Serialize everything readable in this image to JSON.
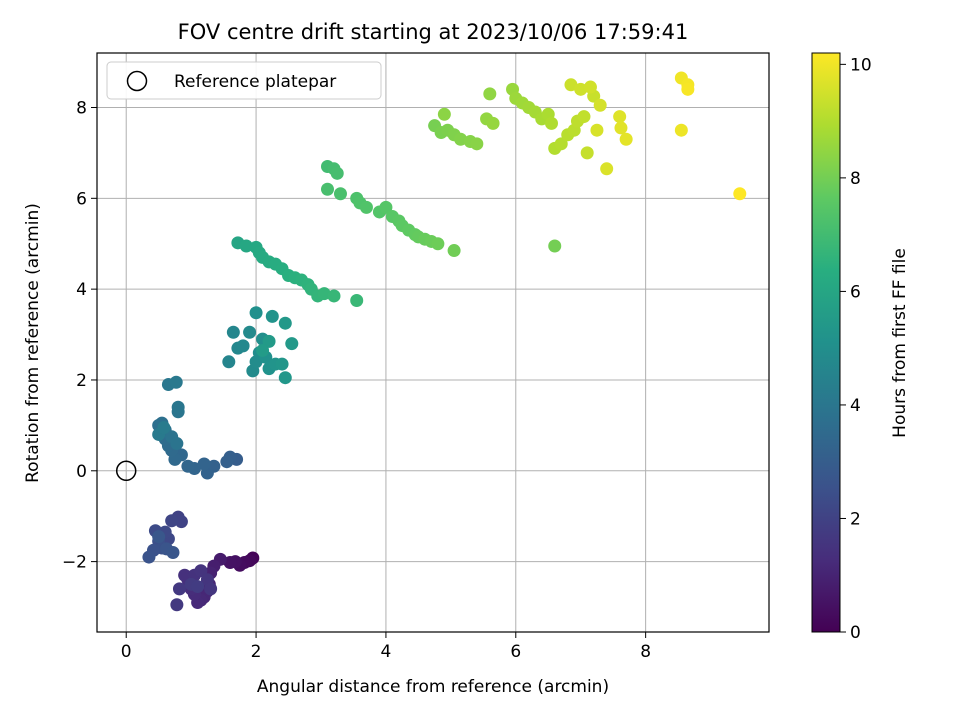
{
  "chart_data": {
    "type": "scatter",
    "title": "FOV centre drift starting at 2023/10/06 17:59:41",
    "xlabel": "Angular distance from reference (arcmin)",
    "ylabel": "Rotation from reference (arcmin)",
    "xlim": [
      -0.45,
      9.9
    ],
    "ylim": [
      -3.55,
      9.2
    ],
    "xticks": [
      0,
      2,
      4,
      6,
      8
    ],
    "yticks": [
      -2,
      0,
      2,
      4,
      6,
      8
    ],
    "xtick_labels": [
      "0",
      "2",
      "4",
      "6",
      "8"
    ],
    "ytick_labels": [
      "−2",
      "0",
      "2",
      "4",
      "6",
      "8"
    ],
    "grid": true,
    "legend": {
      "position": "top-left",
      "label": "Reference platepar"
    },
    "reference_point": {
      "x": 0,
      "y": 0
    },
    "colorbar": {
      "label": "Hours from first FF file",
      "min": 0,
      "max": 10.2,
      "ticks": [
        0,
        2,
        4,
        6,
        8,
        10
      ],
      "tick_labels": [
        "0",
        "2",
        "4",
        "6",
        "8",
        "10"
      ],
      "colormap": "viridis"
    },
    "series": [
      {
        "points": [
          [
            1.95,
            -1.92,
            0.1
          ],
          [
            1.9,
            -1.98,
            0.2
          ],
          [
            1.82,
            -2.02,
            0.3
          ],
          [
            1.75,
            -2.08,
            0.35
          ],
          [
            1.68,
            -2.0,
            0.45
          ],
          [
            1.6,
            -2.02,
            0.5
          ],
          [
            1.45,
            -1.95,
            0.75
          ],
          [
            1.35,
            -2.1,
            0.85
          ],
          [
            1.3,
            -2.25,
            0.95
          ],
          [
            1.28,
            -2.5,
            1.0
          ],
          [
            1.25,
            -2.65,
            1.05
          ],
          [
            1.2,
            -2.78,
            1.1
          ],
          [
            1.15,
            -2.85,
            1.15
          ],
          [
            1.1,
            -2.9,
            1.2
          ],
          [
            1.05,
            -2.72,
            1.25
          ],
          [
            1.0,
            -2.6,
            1.3
          ],
          [
            0.95,
            -2.4,
            1.35
          ],
          [
            0.9,
            -2.3,
            1.4
          ],
          [
            1.05,
            -2.3,
            1.45
          ],
          [
            1.15,
            -2.2,
            1.5
          ],
          [
            1.25,
            -2.4,
            1.55
          ],
          [
            1.3,
            -2.6,
            1.6
          ],
          [
            0.82,
            -2.6,
            1.65
          ],
          [
            0.78,
            -2.95,
            1.7
          ],
          [
            1.0,
            -2.5,
            1.75
          ],
          [
            1.1,
            -2.55,
            1.8
          ],
          [
            0.8,
            -1.02,
            2.0
          ],
          [
            0.85,
            -1.12,
            2.05
          ],
          [
            0.7,
            -1.1,
            2.1
          ],
          [
            0.65,
            -1.5,
            2.2
          ],
          [
            0.6,
            -1.35,
            2.25
          ],
          [
            0.45,
            -1.32,
            2.3
          ],
          [
            0.5,
            -1.55,
            2.4
          ],
          [
            0.55,
            -1.7,
            2.5
          ],
          [
            0.42,
            -1.75,
            2.55
          ],
          [
            0.35,
            -1.9,
            2.6
          ],
          [
            0.62,
            -1.72,
            2.65
          ],
          [
            0.72,
            -1.8,
            2.7
          ],
          [
            0.5,
            -1.45,
            2.75
          ],
          [
            1.7,
            0.25,
            3.0
          ],
          [
            1.6,
            0.3,
            3.05
          ],
          [
            1.55,
            0.2,
            3.1
          ],
          [
            1.35,
            0.1,
            3.15
          ],
          [
            1.25,
            -0.05,
            3.2
          ],
          [
            1.2,
            0.15,
            3.25
          ],
          [
            1.05,
            0.05,
            3.3
          ],
          [
            0.95,
            0.1,
            3.35
          ],
          [
            0.85,
            0.35,
            3.4
          ],
          [
            0.75,
            0.25,
            3.45
          ],
          [
            0.7,
            0.45,
            3.5
          ],
          [
            0.65,
            0.55,
            3.55
          ],
          [
            0.6,
            0.7,
            3.6
          ],
          [
            0.55,
            0.85,
            3.65
          ],
          [
            0.5,
            1.0,
            3.7
          ],
          [
            0.55,
            1.05,
            3.75
          ],
          [
            0.6,
            0.9,
            3.8
          ],
          [
            0.7,
            0.75,
            3.85
          ],
          [
            0.78,
            0.6,
            3.9
          ],
          [
            0.8,
            1.3,
            3.95
          ],
          [
            0.8,
            1.4,
            4.0
          ],
          [
            0.65,
            1.9,
            4.05
          ],
          [
            0.77,
            1.95,
            4.1
          ],
          [
            0.5,
            0.8,
            4.15
          ],
          [
            0.58,
            0.95,
            4.2
          ],
          [
            1.58,
            2.4,
            4.6
          ],
          [
            1.65,
            3.05,
            4.65
          ],
          [
            1.72,
            2.7,
            4.7
          ],
          [
            1.8,
            2.75,
            4.75
          ],
          [
            1.9,
            3.05,
            4.8
          ],
          [
            1.95,
            2.2,
            4.85
          ],
          [
            2.0,
            2.4,
            4.9
          ],
          [
            2.05,
            2.6,
            4.95
          ],
          [
            2.1,
            2.9,
            5.0
          ],
          [
            2.0,
            3.48,
            5.05
          ],
          [
            2.15,
            2.5,
            5.1
          ],
          [
            2.2,
            2.25,
            5.15
          ],
          [
            2.25,
            3.4,
            5.2
          ],
          [
            2.3,
            2.35,
            5.25
          ],
          [
            2.4,
            2.35,
            5.3
          ],
          [
            2.45,
            2.05,
            5.35
          ],
          [
            2.45,
            3.25,
            5.4
          ],
          [
            2.55,
            2.8,
            5.45
          ],
          [
            2.2,
            2.85,
            5.5
          ],
          [
            2.1,
            2.65,
            5.55
          ],
          [
            1.72,
            5.02,
            6.0
          ],
          [
            1.85,
            4.95,
            6.05
          ],
          [
            2.0,
            4.92,
            6.1
          ],
          [
            2.05,
            4.8,
            6.15
          ],
          [
            2.1,
            4.7,
            6.2
          ],
          [
            2.2,
            4.6,
            6.25
          ],
          [
            2.3,
            4.55,
            6.3
          ],
          [
            2.4,
            4.45,
            6.35
          ],
          [
            2.5,
            4.3,
            6.4
          ],
          [
            2.6,
            4.25,
            6.45
          ],
          [
            2.7,
            4.2,
            6.5
          ],
          [
            2.8,
            4.1,
            6.55
          ],
          [
            2.85,
            4.0,
            6.6
          ],
          [
            2.95,
            3.85,
            6.65
          ],
          [
            3.05,
            3.9,
            6.7
          ],
          [
            3.2,
            3.85,
            6.75
          ],
          [
            3.55,
            3.75,
            6.8
          ],
          [
            3.1,
            6.7,
            7.0
          ],
          [
            3.2,
            6.65,
            7.05
          ],
          [
            3.25,
            6.55,
            7.1
          ],
          [
            3.1,
            6.2,
            7.15
          ],
          [
            3.3,
            6.1,
            7.2
          ],
          [
            3.55,
            6.0,
            7.25
          ],
          [
            3.6,
            5.9,
            7.3
          ],
          [
            3.7,
            5.8,
            7.35
          ],
          [
            3.9,
            5.7,
            7.4
          ],
          [
            4.0,
            5.8,
            7.45
          ],
          [
            4.1,
            5.6,
            7.5
          ],
          [
            4.2,
            5.5,
            7.55
          ],
          [
            4.25,
            5.4,
            7.6
          ],
          [
            4.35,
            5.3,
            7.65
          ],
          [
            4.45,
            5.2,
            7.7
          ],
          [
            4.5,
            5.15,
            7.75
          ],
          [
            4.6,
            5.1,
            7.8
          ],
          [
            4.7,
            5.05,
            7.85
          ],
          [
            4.8,
            5.0,
            7.9
          ],
          [
            5.05,
            4.85,
            7.95
          ],
          [
            6.6,
            4.95,
            8.0
          ],
          [
            4.75,
            7.6,
            8.05
          ],
          [
            4.85,
            7.45,
            8.1
          ],
          [
            4.95,
            7.5,
            8.15
          ],
          [
            5.05,
            7.4,
            8.2
          ],
          [
            5.15,
            7.3,
            8.25
          ],
          [
            5.3,
            7.25,
            8.3
          ],
          [
            5.4,
            7.2,
            8.35
          ],
          [
            4.9,
            7.85,
            8.4
          ],
          [
            5.6,
            8.3,
            8.45
          ],
          [
            5.55,
            7.75,
            8.5
          ],
          [
            5.65,
            7.65,
            8.55
          ],
          [
            5.95,
            8.4,
            8.6
          ],
          [
            6.0,
            8.2,
            8.65
          ],
          [
            6.1,
            8.1,
            8.7
          ],
          [
            6.2,
            8.0,
            8.75
          ],
          [
            6.3,
            7.9,
            8.8
          ],
          [
            6.4,
            7.75,
            8.85
          ],
          [
            6.5,
            7.85,
            8.9
          ],
          [
            6.55,
            7.65,
            8.95
          ],
          [
            6.6,
            7.1,
            9.0
          ],
          [
            6.7,
            7.2,
            9.05
          ],
          [
            6.8,
            7.4,
            9.1
          ],
          [
            6.9,
            7.5,
            9.15
          ],
          [
            6.95,
            7.7,
            9.2
          ],
          [
            7.05,
            7.8,
            9.25
          ],
          [
            7.1,
            7.0,
            9.3
          ],
          [
            7.2,
            8.25,
            9.35
          ],
          [
            6.85,
            8.5,
            9.4
          ],
          [
            7.0,
            8.4,
            9.45
          ],
          [
            7.15,
            8.45,
            9.5
          ],
          [
            7.3,
            8.05,
            9.55
          ],
          [
            7.25,
            7.5,
            9.6
          ],
          [
            7.4,
            6.65,
            9.65
          ],
          [
            7.6,
            7.8,
            9.7
          ],
          [
            7.62,
            7.55,
            9.75
          ],
          [
            7.7,
            7.3,
            9.8
          ],
          [
            8.55,
            8.65,
            10.0
          ],
          [
            8.65,
            8.5,
            10.05
          ],
          [
            8.65,
            8.4,
            10.1
          ],
          [
            8.55,
            7.5,
            9.95
          ],
          [
            9.45,
            6.1,
            10.2
          ]
        ]
      }
    ]
  }
}
